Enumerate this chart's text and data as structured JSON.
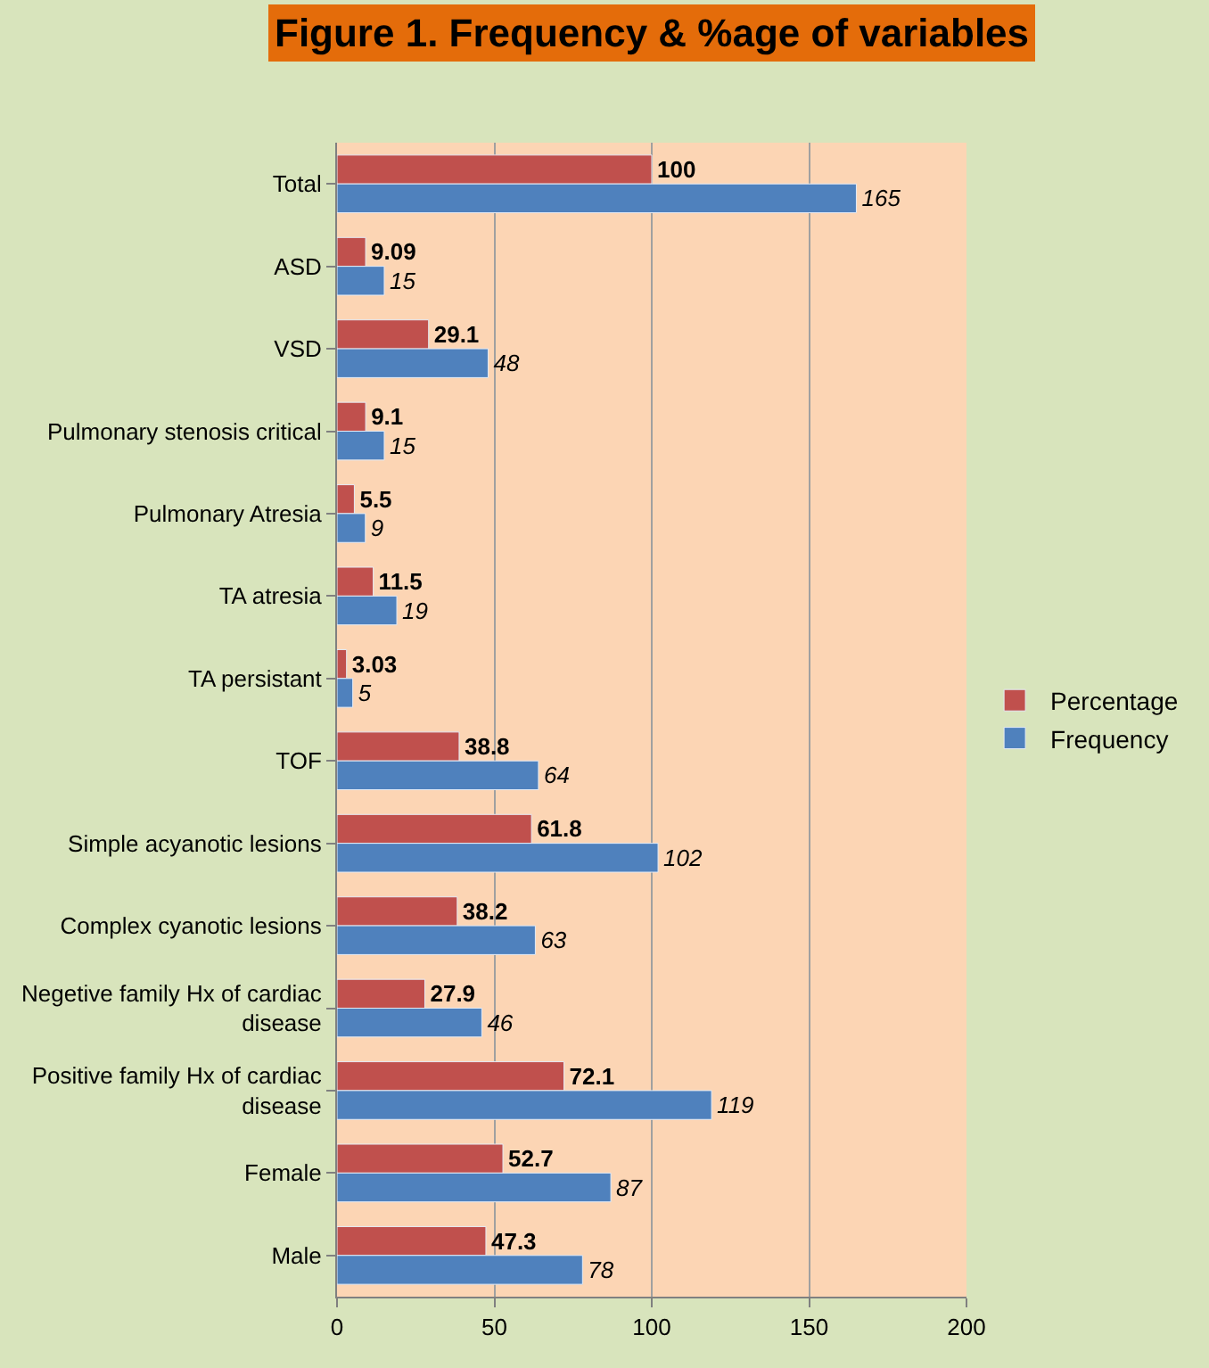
{
  "chart_data": {
    "type": "bar",
    "orientation": "horizontal",
    "title": "Figure 1. Frequency & %age of variables",
    "categories": [
      "Total",
      "ASD",
      "VSD",
      "Pulmonary stenosis critical",
      "Pulmonary Atresia",
      "TA atresia",
      "TA persistant",
      "TOF",
      "Simple acyanotic lesions",
      "Complex cyanotic lesions",
      "Negetive family Hx of cardiac disease",
      "Positive family Hx of cardiac disease",
      "Female",
      "Male"
    ],
    "series": [
      {
        "name": "Percentage",
        "color": "#c0504d",
        "values": [
          100,
          9.09,
          29.1,
          9.1,
          5.5,
          11.5,
          3.03,
          38.8,
          61.8,
          38.2,
          27.9,
          72.1,
          52.7,
          47.3
        ]
      },
      {
        "name": "Frequency",
        "color": "#4f81bd",
        "values": [
          165,
          15,
          48,
          15,
          9,
          19,
          5,
          64,
          102,
          63,
          46,
          119,
          87,
          78
        ]
      }
    ],
    "xlim": [
      0,
      200
    ],
    "xticks": [
      0,
      50,
      100,
      150,
      200
    ],
    "grid": "x",
    "legend": "right",
    "data_labels": true
  }
}
